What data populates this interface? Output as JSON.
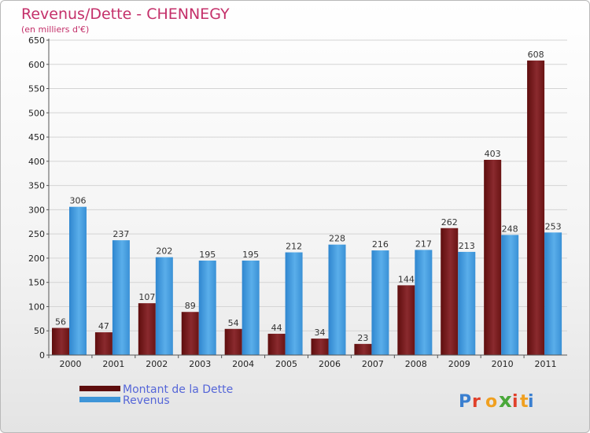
{
  "chart_data": {
    "type": "bar",
    "title": "Revenus/Dette - CHENNEGY",
    "subtitle": "(en milliers d'€)",
    "categories": [
      "2000",
      "2001",
      "2002",
      "2003",
      "2004",
      "2005",
      "2006",
      "2007",
      "2008",
      "2009",
      "2010",
      "2011"
    ],
    "series": [
      {
        "name": "Montant de la Dette",
        "color": "#7a1e1e",
        "values": [
          56,
          47,
          107,
          89,
          54,
          44,
          34,
          23,
          144,
          262,
          403,
          608
        ]
      },
      {
        "name": "Revenus",
        "color": "#3e95d8",
        "values": [
          306,
          237,
          202,
          195,
          195,
          212,
          228,
          216,
          217,
          213,
          248,
          253
        ]
      }
    ],
    "ylim": [
      0,
      650
    ],
    "yticks": [
      0,
      50,
      100,
      150,
      200,
      250,
      300,
      350,
      400,
      450,
      500,
      550,
      600,
      650
    ],
    "xlabel": "",
    "ylabel": "",
    "grid": true,
    "legend_position": "bottom-left"
  },
  "logo": {
    "text": "Proxiti"
  }
}
